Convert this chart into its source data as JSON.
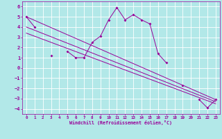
{
  "xlabel": "Windchill (Refroidissement éolien,°C)",
  "bg_color": "#b2e8e8",
  "grid_color": "#ffffff",
  "line_color": "#990099",
  "x_data": [
    0,
    1,
    2,
    3,
    4,
    5,
    6,
    7,
    8,
    9,
    10,
    11,
    12,
    13,
    14,
    15,
    16,
    17,
    18,
    19,
    20,
    21,
    22,
    23
  ],
  "y_main": [
    5.0,
    4.0,
    null,
    1.2,
    null,
    1.6,
    1.0,
    1.0,
    2.5,
    3.1,
    4.7,
    5.9,
    4.7,
    5.2,
    4.7,
    4.3,
    1.4,
    0.5,
    null,
    -1.7,
    null,
    -3.1,
    -3.9,
    -3.1
  ],
  "xlim": [
    -0.5,
    23.5
  ],
  "ylim": [
    -4.5,
    6.5
  ],
  "yticks": [
    -4,
    -3,
    -2,
    -1,
    0,
    1,
    2,
    3,
    4,
    5,
    6
  ],
  "xticks": [
    0,
    1,
    2,
    3,
    4,
    5,
    6,
    7,
    8,
    9,
    10,
    11,
    12,
    13,
    14,
    15,
    16,
    17,
    18,
    19,
    20,
    21,
    22,
    23
  ],
  "reg_lines": [
    {
      "x0": 0,
      "y0": 5.0,
      "x1": 23,
      "y1": -3.1
    },
    {
      "x0": 0,
      "y0": 4.0,
      "x1": 23,
      "y1": -3.3
    },
    {
      "x0": 0,
      "y0": 3.4,
      "x1": 23,
      "y1": -3.5
    }
  ]
}
